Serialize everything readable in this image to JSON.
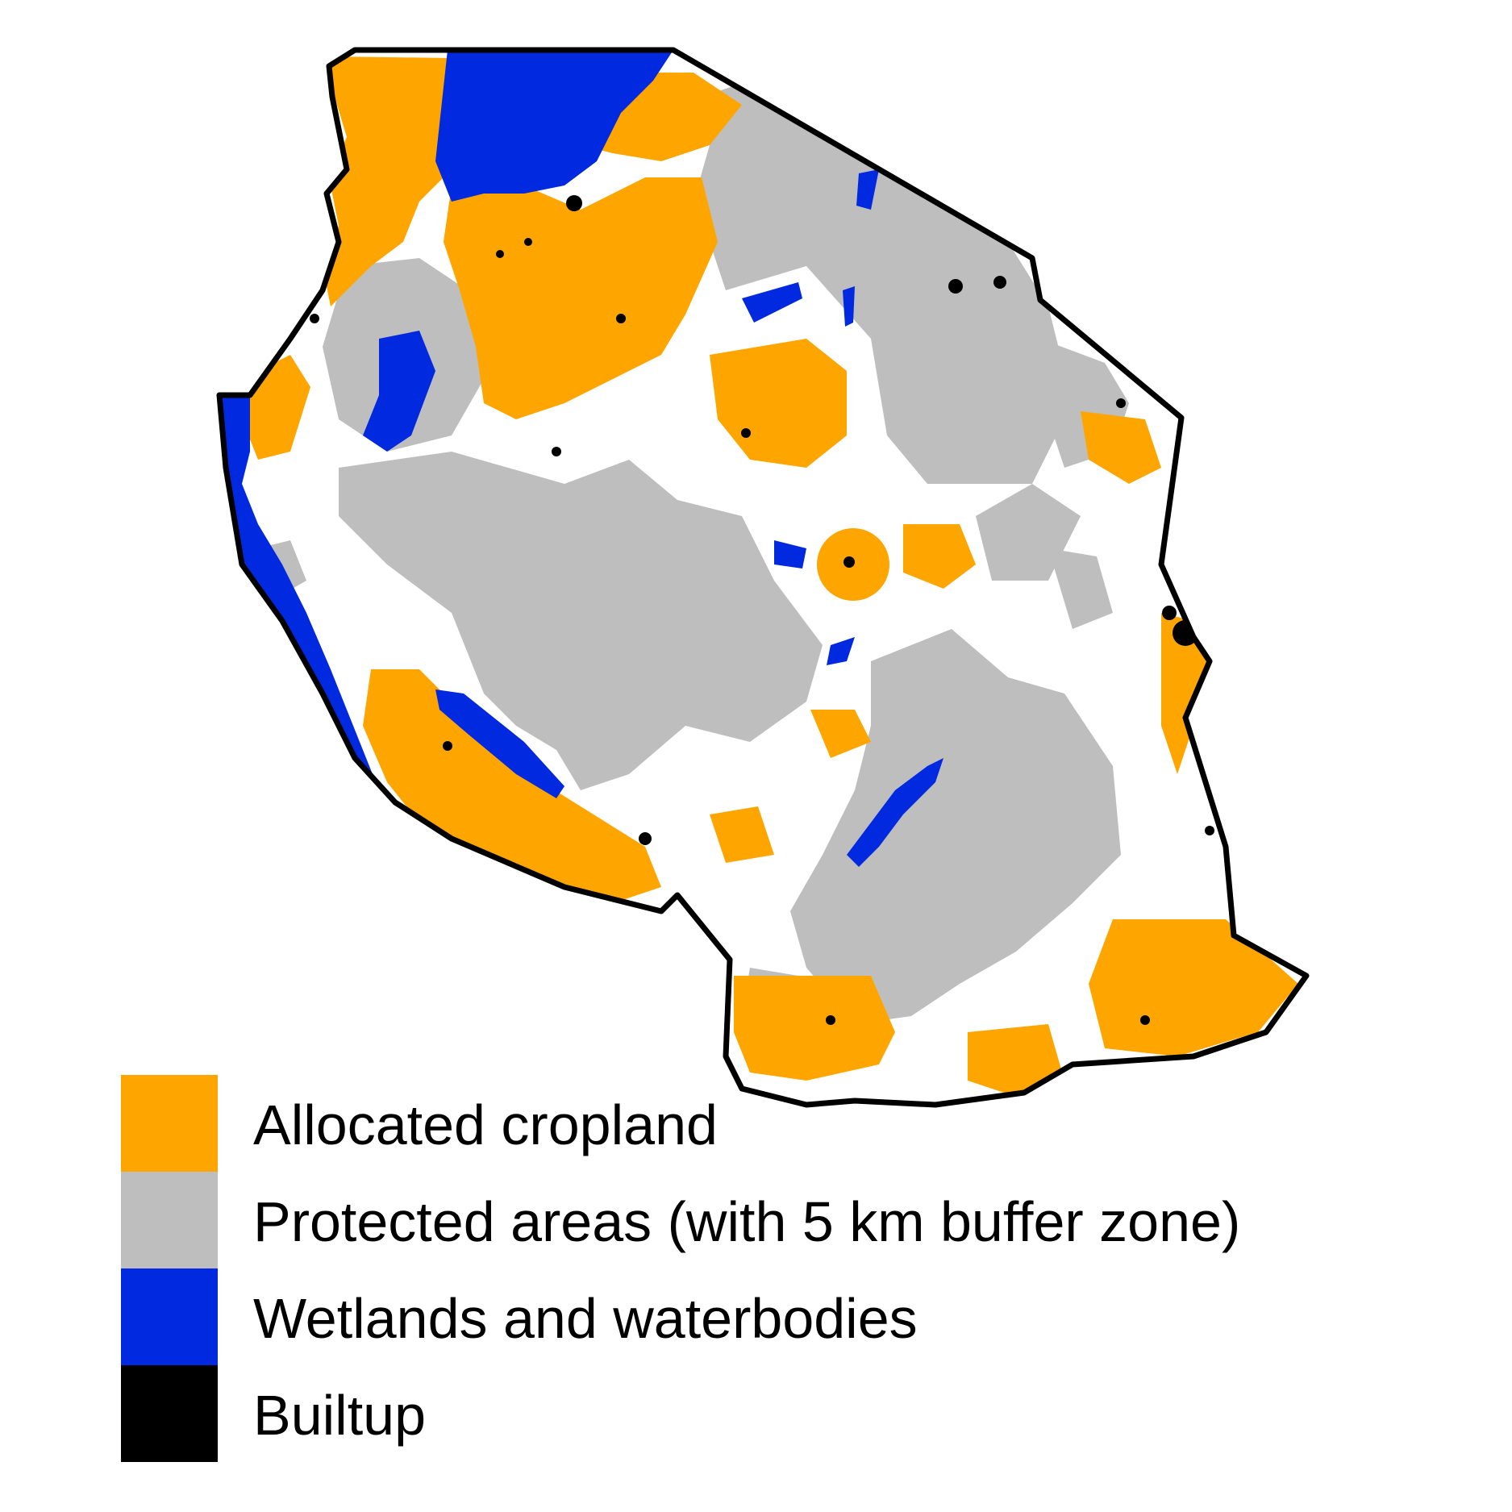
{
  "map": {
    "region_fill": "#ffffff",
    "border_color": "#000000"
  },
  "legend": {
    "items": [
      {
        "label": "Allocated cropland",
        "color": "#FFA500"
      },
      {
        "label": "Protected areas (with 5 km buffer zone)",
        "color": "#BEBEBE"
      },
      {
        "label": "Wetlands and waterbodies",
        "color": "#0029E0"
      },
      {
        "label": "Builtup",
        "color": "#000000"
      }
    ]
  }
}
